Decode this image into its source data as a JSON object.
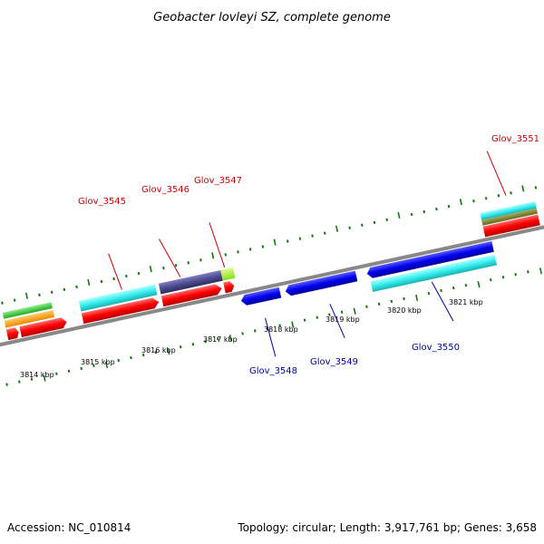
{
  "title": "Geobacter lovleyi SZ, complete genome",
  "footer": {
    "accession": "Accession: NC_010814",
    "topology": "Topology: circular; Length: 3,917,761 bp; Genes: 3,658"
  },
  "scale_labels": [
    "3814 kbp",
    "3815 kbp",
    "3816 kbp",
    "3817 kbp",
    "3818 kbp",
    "3819 kbp",
    "3820 kbp",
    "3821 kbp"
  ],
  "genes_forward": [
    "Glov_3545",
    "Glov_3546",
    "Glov_3547",
    "Glov_3551"
  ],
  "genes_reverse": [
    "Glov_3548",
    "Glov_3549",
    "Glov_3550"
  ],
  "colors": {
    "forward_gene": "#ff0000",
    "reverse_gene": "#0000ee",
    "cds_match": "#33eeee",
    "backbone": "#888888",
    "ticks": "#117711"
  }
}
